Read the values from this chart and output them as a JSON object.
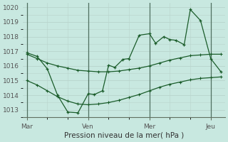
{
  "background_color": "#c8e8e0",
  "grid_color": "#b8d4cc",
  "line_color": "#1a5c2a",
  "xlabel": "Pression niveau de la mer( hPa )",
  "ylim": [
    1012.5,
    1020.3
  ],
  "yticks": [
    1013,
    1014,
    1015,
    1016,
    1017,
    1018,
    1019,
    1020
  ],
  "xtick_labels": [
    "Mar",
    "Ven",
    "Mer",
    "Jeu"
  ],
  "xtick_positions": [
    0,
    3,
    6,
    9
  ],
  "vlines": [
    0,
    3,
    6,
    9
  ],
  "series1_x": [
    0,
    0.5,
    1.0,
    1.5,
    2.0,
    2.5,
    3.0,
    3.3,
    3.7,
    4.0,
    4.3,
    4.7,
    5.0,
    5.5,
    6.0,
    6.3,
    6.7,
    7.0,
    7.3,
    7.7,
    8.0,
    8.5,
    9.0,
    9.5
  ],
  "series1_y": [
    1016.9,
    1016.65,
    1015.8,
    1014.0,
    1012.85,
    1012.8,
    1014.1,
    1014.05,
    1014.3,
    1016.05,
    1015.9,
    1016.45,
    1016.5,
    1018.1,
    1018.2,
    1017.55,
    1018.0,
    1017.8,
    1017.75,
    1017.45,
    1019.85,
    1019.1,
    1016.5,
    1015.6
  ],
  "series2_x": [
    0,
    0.5,
    1.0,
    1.5,
    2.0,
    2.5,
    3.0,
    3.5,
    4.0,
    4.5,
    5.0,
    5.5,
    6.0,
    6.5,
    7.0,
    7.5,
    8.0,
    8.5,
    9.0,
    9.5
  ],
  "series2_y": [
    1016.8,
    1016.5,
    1016.2,
    1016.0,
    1015.85,
    1015.7,
    1015.65,
    1015.6,
    1015.6,
    1015.65,
    1015.75,
    1015.85,
    1016.0,
    1016.2,
    1016.4,
    1016.55,
    1016.7,
    1016.75,
    1016.8,
    1016.8
  ],
  "series3_x": [
    0,
    0.5,
    1.0,
    1.5,
    2.0,
    2.5,
    3.0,
    3.5,
    4.0,
    4.5,
    5.0,
    5.5,
    6.0,
    6.5,
    7.0,
    7.5,
    8.0,
    8.5,
    9.0,
    9.5
  ],
  "series3_y": [
    1015.0,
    1014.7,
    1014.3,
    1013.9,
    1013.6,
    1013.4,
    1013.35,
    1013.4,
    1013.5,
    1013.65,
    1013.85,
    1014.05,
    1014.3,
    1014.55,
    1014.75,
    1014.9,
    1015.05,
    1015.15,
    1015.2,
    1015.25
  ]
}
